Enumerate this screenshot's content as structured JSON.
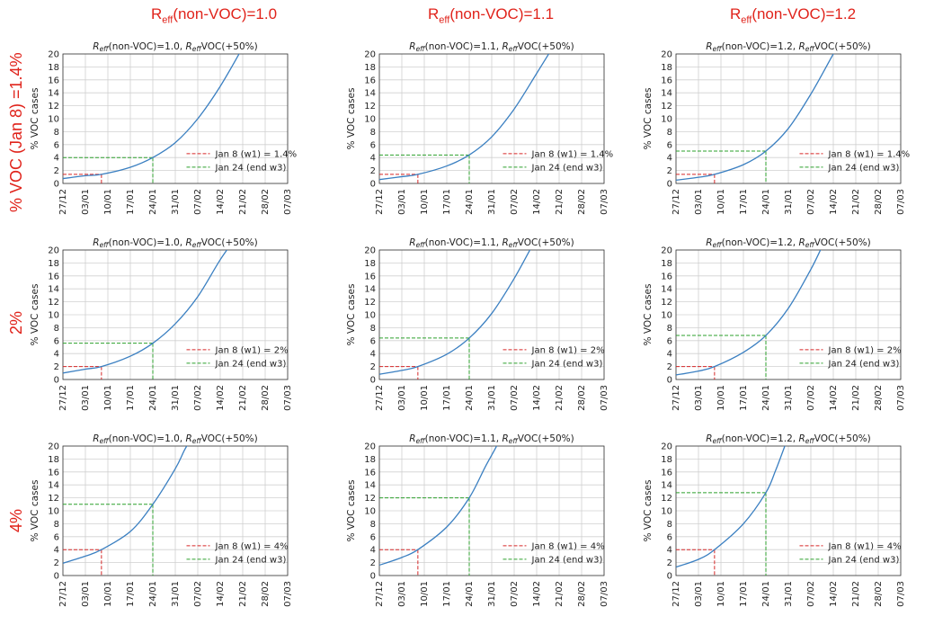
{
  "column_titles": [
    {
      "prefix": "R",
      "sub": "eff",
      "suffix": "(non-VOC)=1.0"
    },
    {
      "prefix": "R",
      "sub": "eff",
      "suffix": "(non-VOC)=1.1"
    },
    {
      "prefix": "R",
      "sub": "eff",
      "suffix": "(non-VOC)=1.2"
    }
  ],
  "row_titles": [
    "% VOC (Jan 8) =1.4%",
    "2%",
    "4%"
  ],
  "colors": {
    "annotation": "#e0231b",
    "curve": "#3a7fc1",
    "w1_line": "#d62728",
    "w3_line": "#2ca02c",
    "grid": "#d0d0d0"
  },
  "chart_data": [
    {
      "type": "line",
      "title_a": "R",
      "title_b": "eff",
      "title_c": "(non-VOC)=1.0, ",
      "title_d": "R",
      "title_e": "eff",
      "title_f": "VOC(+50%)",
      "ylabel": "% VOC cases",
      "ylim": [
        0,
        20
      ],
      "yticks": [
        0,
        2,
        4,
        6,
        8,
        10,
        12,
        14,
        16,
        18,
        20
      ],
      "xticks": [
        "27/12",
        "03/01",
        "10/01",
        "17/01",
        "24/01",
        "31/01",
        "07/02",
        "14/02",
        "21/02",
        "28/02",
        "07/03"
      ],
      "x_range_days": [
        0,
        70
      ],
      "x_start": "27/12",
      "x": [
        0,
        7,
        12,
        21,
        28,
        35,
        42,
        49,
        56
      ],
      "y": [
        0.75,
        1.2,
        1.4,
        2.5,
        4.0,
        6.3,
        10.0,
        15.0,
        21.0
      ],
      "w1": {
        "x": 12,
        "y": 1.4,
        "label": "Jan 8 (w1) = 1.4%"
      },
      "w3": {
        "x": 28,
        "y": 4.0,
        "label": "Jan 24 (end w3)"
      }
    },
    {
      "type": "line",
      "title_a": "R",
      "title_b": "eff",
      "title_c": "(non-VOC)=1.1, ",
      "title_d": "R",
      "title_e": "eff",
      "title_f": "VOC(+50%)",
      "ylabel": "% VOC cases",
      "ylim": [
        0,
        20
      ],
      "yticks": [
        0,
        2,
        4,
        6,
        8,
        10,
        12,
        14,
        16,
        18,
        20
      ],
      "xticks": [
        "27/12",
        "03/01",
        "10/01",
        "17/01",
        "24/01",
        "31/01",
        "07/02",
        "14/02",
        "21/02",
        "28/02",
        "07/03"
      ],
      "x_range_days": [
        0,
        70
      ],
      "x_start": "27/12",
      "x": [
        0,
        7,
        12,
        21,
        28,
        35,
        42,
        49,
        54
      ],
      "y": [
        0.6,
        1.05,
        1.4,
        2.7,
        4.4,
        7.2,
        11.5,
        17.0,
        21.0
      ],
      "w1": {
        "x": 12,
        "y": 1.4,
        "label": "Jan 8 (w1) = 1.4%"
      },
      "w3": {
        "x": 28,
        "y": 4.4,
        "label": "Jan 24 (end w3)"
      }
    },
    {
      "type": "line",
      "title_a": "R",
      "title_b": "eff",
      "title_c": "(non-VOC)=1.2, ",
      "title_d": "R",
      "title_e": "eff",
      "title_f": "VOC(+50%)",
      "ylabel": "% VOC cases",
      "ylim": [
        0,
        20
      ],
      "yticks": [
        0,
        2,
        4,
        6,
        8,
        10,
        12,
        14,
        16,
        18,
        20
      ],
      "xticks": [
        "27/12",
        "03/01",
        "10/01",
        "17/01",
        "24/01",
        "31/01",
        "07/02",
        "14/02",
        "21/02",
        "28/02",
        "07/03"
      ],
      "x_range_days": [
        0,
        70
      ],
      "x_start": "27/12",
      "x": [
        0,
        7,
        12,
        21,
        28,
        35,
        42,
        49,
        52
      ],
      "y": [
        0.5,
        0.95,
        1.4,
        2.9,
        5.0,
        8.5,
        13.8,
        20.0,
        22.5
      ],
      "w1": {
        "x": 12,
        "y": 1.4,
        "label": "Jan 8 (w1) = 1.4%"
      },
      "w3": {
        "x": 28,
        "y": 5.0,
        "label": "Jan 24 (end w3)"
      }
    },
    {
      "type": "line",
      "title_a": "R",
      "title_b": "eff",
      "title_c": "(non-VOC)=1.0, ",
      "title_d": "R",
      "title_e": "eff",
      "title_f": "VOC(+50%)",
      "ylabel": "% VOC cases",
      "ylim": [
        0,
        20
      ],
      "yticks": [
        0,
        2,
        4,
        6,
        8,
        10,
        12,
        14,
        16,
        18,
        20
      ],
      "xticks": [
        "27/12",
        "03/01",
        "10/01",
        "17/01",
        "24/01",
        "31/01",
        "07/02",
        "14/02",
        "21/02",
        "28/02",
        "07/03"
      ],
      "x_range_days": [
        0,
        70
      ],
      "x_start": "27/12",
      "x": [
        0,
        7,
        12,
        21,
        28,
        35,
        42,
        49,
        54
      ],
      "y": [
        1.0,
        1.6,
        2.0,
        3.6,
        5.6,
        8.6,
        12.8,
        18.5,
        22.0
      ],
      "w1": {
        "x": 12,
        "y": 2.0,
        "label": "Jan 8 (w1) = 2%"
      },
      "w3": {
        "x": 28,
        "y": 5.6,
        "label": "Jan 24 (end w3)"
      }
    },
    {
      "type": "line",
      "title_a": "R",
      "title_b": "eff",
      "title_c": "(non-VOC)=1.1, ",
      "title_d": "R",
      "title_e": "eff",
      "title_f": "VOC(+50%)",
      "ylabel": "% VOC cases",
      "ylim": [
        0,
        20
      ],
      "yticks": [
        0,
        2,
        4,
        6,
        8,
        10,
        12,
        14,
        16,
        18,
        20
      ],
      "xticks": [
        "27/12",
        "03/01",
        "10/01",
        "17/01",
        "24/01",
        "31/01",
        "07/02",
        "14/02",
        "21/02",
        "28/02",
        "07/03"
      ],
      "x_range_days": [
        0,
        70
      ],
      "x_start": "27/12",
      "x": [
        0,
        7,
        12,
        21,
        28,
        35,
        42,
        48,
        51
      ],
      "y": [
        0.8,
        1.4,
        2.0,
        3.9,
        6.4,
        10.2,
        15.6,
        21.0,
        23.5
      ],
      "w1": {
        "x": 12,
        "y": 2.0,
        "label": "Jan 8 (w1) = 2%"
      },
      "w3": {
        "x": 28,
        "y": 6.4,
        "label": "Jan 24 (end w3)"
      }
    },
    {
      "type": "line",
      "title_a": "R",
      "title_b": "eff",
      "title_c": "(non-VOC)=1.2, ",
      "title_d": "R",
      "title_e": "eff",
      "title_f": "VOC(+50%)",
      "ylabel": "% VOC cases",
      "ylim": [
        0,
        20
      ],
      "yticks": [
        0,
        2,
        4,
        6,
        8,
        10,
        12,
        14,
        16,
        18,
        20
      ],
      "xticks": [
        "27/12",
        "03/01",
        "10/01",
        "17/01",
        "24/01",
        "31/01",
        "07/02",
        "14/02",
        "21/02",
        "28/02",
        "07/03"
      ],
      "x_range_days": [
        0,
        70
      ],
      "x_start": "27/12",
      "x": [
        0,
        7,
        12,
        21,
        28,
        35,
        42,
        46,
        49
      ],
      "y": [
        0.7,
        1.3,
        2.0,
        4.2,
        6.8,
        11.0,
        17.0,
        21.0,
        23.5
      ],
      "w1": {
        "x": 12,
        "y": 2.0,
        "label": "Jan 8 (w1) = 2%"
      },
      "w3": {
        "x": 28,
        "y": 6.8,
        "label": "Jan 24 (end w3)"
      }
    },
    {
      "type": "line",
      "title_a": "R",
      "title_b": "eff",
      "title_c": "(non-VOC)=1.0, ",
      "title_d": "R",
      "title_e": "eff",
      "title_f": "VOC(+50%)",
      "ylabel": "% VOC cases",
      "ylim": [
        0,
        20
      ],
      "yticks": [
        0,
        2,
        4,
        6,
        8,
        10,
        12,
        14,
        16,
        18,
        20
      ],
      "xticks": [
        "27/12",
        "03/01",
        "10/01",
        "17/01",
        "24/01",
        "31/01",
        "07/02",
        "14/02",
        "21/02",
        "28/02",
        "07/03"
      ],
      "x_range_days": [
        0,
        70
      ],
      "x_start": "27/12",
      "x": [
        0,
        7,
        12,
        21,
        28,
        35,
        38,
        41
      ],
      "y": [
        1.9,
        3.0,
        4.0,
        6.8,
        11.0,
        16.5,
        19.5,
        22.0
      ],
      "w1": {
        "x": 12,
        "y": 4.0,
        "label": "Jan 8 (w1) = 4%"
      },
      "w3": {
        "x": 28,
        "y": 11.0,
        "label": "Jan 24 (end w3)"
      }
    },
    {
      "type": "line",
      "title_a": "R",
      "title_b": "eff",
      "title_c": "(non-VOC)=1.1, ",
      "title_d": "R",
      "title_e": "eff",
      "title_f": "VOC(+50%)",
      "ylabel": "% VOC cases",
      "ylim": [
        0,
        20
      ],
      "yticks": [
        0,
        2,
        4,
        6,
        8,
        10,
        12,
        14,
        16,
        18,
        20
      ],
      "xticks": [
        "27/12",
        "03/01",
        "10/01",
        "17/01",
        "24/01",
        "31/01",
        "07/02",
        "14/02",
        "21/02",
        "28/02",
        "07/03"
      ],
      "x_range_days": [
        0,
        70
      ],
      "x_start": "27/12",
      "x": [
        0,
        7,
        12,
        21,
        28,
        33,
        36,
        38
      ],
      "y": [
        1.6,
        2.8,
        4.0,
        7.5,
        12.0,
        16.8,
        19.5,
        21.5
      ],
      "w1": {
        "x": 12,
        "y": 4.0,
        "label": "Jan 8 (w1) = 4%"
      },
      "w3": {
        "x": 28,
        "y": 12.0,
        "label": "Jan 24 (end w3)"
      }
    },
    {
      "type": "line",
      "title_a": "R",
      "title_b": "eff",
      "title_c": "(non-VOC)=1.2, ",
      "title_d": "R",
      "title_e": "eff",
      "title_f": "VOC(+50%)",
      "ylabel": "% VOC cases",
      "ylim": [
        0,
        20
      ],
      "yticks": [
        0,
        2,
        4,
        6,
        8,
        10,
        12,
        14,
        16,
        18,
        20
      ],
      "xticks": [
        "27/12",
        "03/01",
        "10/01",
        "17/01",
        "24/01",
        "31/01",
        "07/02",
        "14/02",
        "21/02",
        "28/02",
        "07/03"
      ],
      "x_range_days": [
        0,
        70
      ],
      "x_start": "27/12",
      "x": [
        0,
        7,
        12,
        21,
        28,
        31,
        33,
        35
      ],
      "y": [
        1.3,
        2.5,
        4.0,
        8.0,
        12.8,
        16.2,
        18.8,
        21.5
      ],
      "w1": {
        "x": 12,
        "y": 4.0,
        "label": "Jan 8 (w1) = 4%"
      },
      "w3": {
        "x": 28,
        "y": 12.8,
        "label": "Jan 24 (end w3)"
      }
    }
  ]
}
